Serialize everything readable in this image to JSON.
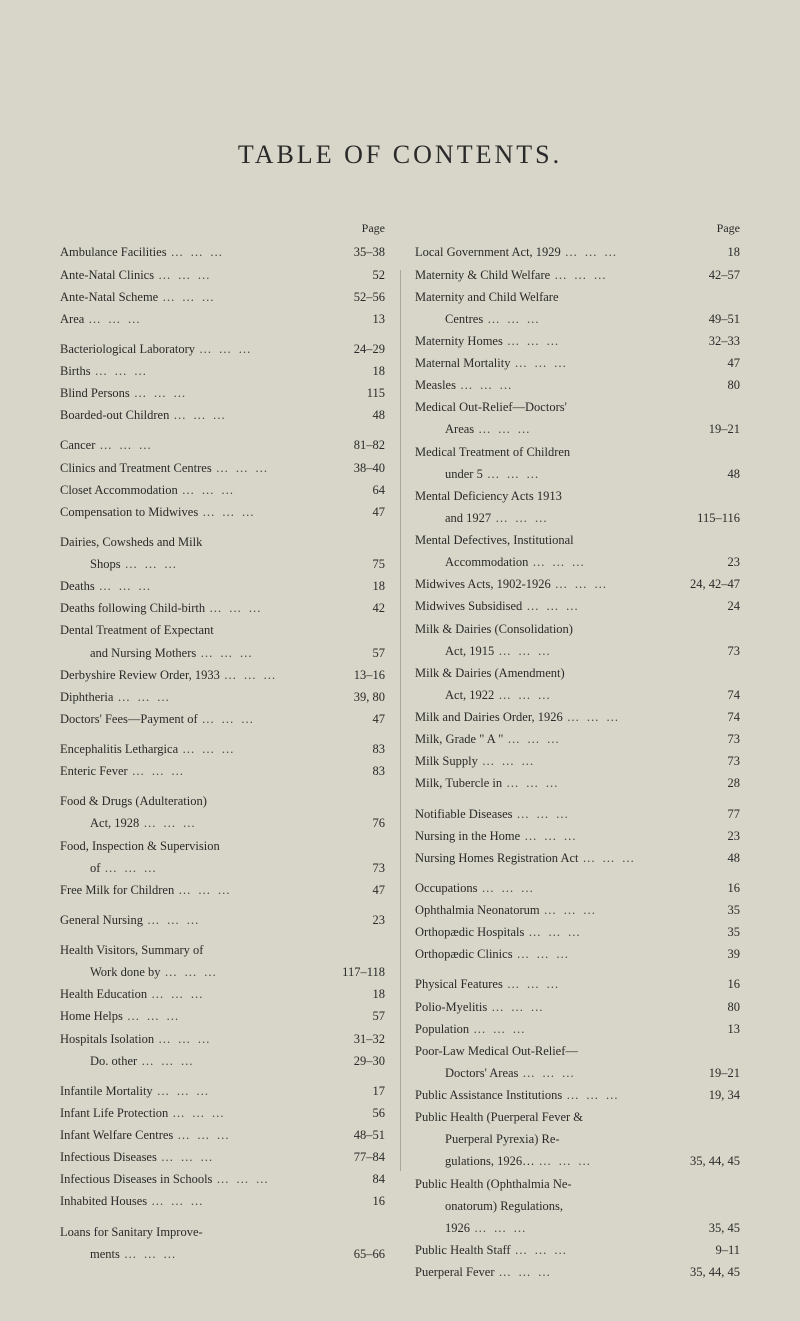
{
  "title": "TABLE OF CONTENTS.",
  "pageHeader": "Page",
  "colors": {
    "background": "#d8d6c8",
    "text": "#2a2a2a",
    "divider": "#3a3a3a"
  },
  "typography": {
    "titleSize": 26,
    "bodySize": 12.5,
    "titleLetterSpacing": 3
  },
  "leftColumn": [
    {
      "label": "Ambulance Facilities",
      "page": "35–38"
    },
    {
      "label": "Ante-Natal Clinics",
      "page": "52"
    },
    {
      "label": "Ante-Natal Scheme",
      "page": "52–56"
    },
    {
      "label": "Area",
      "page": "13"
    },
    {
      "gap": true
    },
    {
      "label": "Bacteriological Laboratory",
      "page": "24–29"
    },
    {
      "label": "Births",
      "page": "18"
    },
    {
      "label": "Blind Persons",
      "page": "115"
    },
    {
      "label": "Boarded-out Children",
      "page": "48"
    },
    {
      "gap": true
    },
    {
      "label": "Cancer",
      "page": "81–82"
    },
    {
      "label": "Clinics and Treatment Centres",
      "page": "38–40"
    },
    {
      "label": "Closet Accommodation",
      "page": "64"
    },
    {
      "label": "Compensation to Midwives",
      "page": "47"
    },
    {
      "gap": true
    },
    {
      "label": "Dairies, Cowsheds and Milk",
      "page": ""
    },
    {
      "label": "Shops",
      "page": "75",
      "sub": true
    },
    {
      "label": "Deaths",
      "page": "18"
    },
    {
      "label": "Deaths following Child-birth",
      "page": "42"
    },
    {
      "label": "Dental Treatment of Expectant",
      "page": ""
    },
    {
      "label": "and Nursing Mothers",
      "page": "57",
      "sub": true
    },
    {
      "label": "Derbyshire Review Order, 1933",
      "page": "13–16"
    },
    {
      "label": "Diphtheria",
      "page": "39, 80"
    },
    {
      "label": "Doctors' Fees—Payment of",
      "page": "47"
    },
    {
      "gap": true
    },
    {
      "label": "Encephalitis Lethargica",
      "page": "83"
    },
    {
      "label": "Enteric Fever",
      "page": "83"
    },
    {
      "gap": true
    },
    {
      "label": "Food & Drugs (Adulteration)",
      "page": ""
    },
    {
      "label": "Act, 1928",
      "page": "76",
      "sub": true
    },
    {
      "label": "Food, Inspection & Supervision",
      "page": ""
    },
    {
      "label": "of",
      "page": "73",
      "sub": true
    },
    {
      "label": "Free Milk for Children",
      "page": "47"
    },
    {
      "gap": true
    },
    {
      "label": "General Nursing",
      "page": "23"
    },
    {
      "gap": true
    },
    {
      "label": "Health Visitors, Summary of",
      "page": ""
    },
    {
      "label": "Work done by",
      "page": "117–118",
      "sub": true
    },
    {
      "label": "Health Education",
      "page": "18"
    },
    {
      "label": "Home Helps",
      "page": "57"
    },
    {
      "label": "Hospitals Isolation",
      "page": "31–32"
    },
    {
      "label": "Do. other",
      "page": "29–30",
      "sub": true
    },
    {
      "gap": true
    },
    {
      "label": "Infantile Mortality",
      "page": "17"
    },
    {
      "label": "Infant Life Protection",
      "page": "56"
    },
    {
      "label": "Infant Welfare Centres",
      "page": "48–51"
    },
    {
      "label": "Infectious Diseases",
      "page": "77–84"
    },
    {
      "label": "Infectious Diseases in Schools",
      "page": "84"
    },
    {
      "label": "Inhabited Houses",
      "page": "16"
    },
    {
      "gap": true
    },
    {
      "label": "Loans for Sanitary Improve-",
      "page": ""
    },
    {
      "label": "ments",
      "page": "65–66",
      "sub": true
    }
  ],
  "rightColumn": [
    {
      "label": "Local Government Act, 1929",
      "page": "18"
    },
    {
      "label": "Maternity & Child Welfare",
      "page": "42–57"
    },
    {
      "label": "Maternity and Child Welfare",
      "page": ""
    },
    {
      "label": "Centres",
      "page": "49–51",
      "sub": true
    },
    {
      "label": "Maternity Homes",
      "page": "32–33"
    },
    {
      "label": "Maternal Mortality",
      "page": "47"
    },
    {
      "label": "Measles",
      "page": "80"
    },
    {
      "label": "Medical Out-Relief—Doctors'",
      "page": ""
    },
    {
      "label": "Areas",
      "page": "19–21",
      "sub": true
    },
    {
      "label": "Medical Treatment of Children",
      "page": ""
    },
    {
      "label": "under 5",
      "page": "48",
      "sub": true
    },
    {
      "label": "Mental Deficiency Acts 1913",
      "page": ""
    },
    {
      "label": "and 1927",
      "page": "115–116",
      "sub": true
    },
    {
      "label": "Mental Defectives, Institutional",
      "page": ""
    },
    {
      "label": "Accommodation",
      "page": "23",
      "sub": true
    },
    {
      "label": "Midwives Acts, 1902-1926",
      "page": "24, 42–47"
    },
    {
      "label": "Midwives Subsidised",
      "page": "24"
    },
    {
      "label": "Milk & Dairies (Consolidation)",
      "page": ""
    },
    {
      "label": "Act, 1915",
      "page": "73",
      "sub": true
    },
    {
      "label": "Milk & Dairies (Amendment)",
      "page": ""
    },
    {
      "label": "Act, 1922",
      "page": "74",
      "sub": true
    },
    {
      "label": "Milk and Dairies Order, 1926",
      "page": "74"
    },
    {
      "label": "Milk, Grade \" A \"",
      "page": "73"
    },
    {
      "label": "Milk Supply",
      "page": "73"
    },
    {
      "label": "Milk, Tubercle in",
      "page": "28"
    },
    {
      "gap": true
    },
    {
      "label": "Notifiable Diseases",
      "page": "77"
    },
    {
      "label": "Nursing in the Home",
      "page": "23"
    },
    {
      "label": "Nursing Homes Registration Act",
      "page": "48"
    },
    {
      "gap": true
    },
    {
      "label": "Occupations",
      "page": "16"
    },
    {
      "label": "Ophthalmia Neonatorum",
      "page": "35"
    },
    {
      "label": "Orthopædic Hospitals",
      "page": "35"
    },
    {
      "label": "Orthopædic Clinics",
      "page": "39"
    },
    {
      "gap": true
    },
    {
      "label": "Physical Features",
      "page": "16"
    },
    {
      "label": "Polio-Myelitis",
      "page": "80"
    },
    {
      "label": "Population",
      "page": "13"
    },
    {
      "label": "Poor-Law Medical Out-Relief—",
      "page": ""
    },
    {
      "label": "Doctors' Areas",
      "page": "19–21",
      "sub": true
    },
    {
      "label": "Public Assistance Institutions",
      "page": "19, 34"
    },
    {
      "label": "Public Health (Puerperal Fever &",
      "page": ""
    },
    {
      "label": "Puerperal Pyrexia) Re-",
      "page": "",
      "sub": true
    },
    {
      "label": "gulations, 1926…",
      "page": "35, 44, 45",
      "sub": true
    },
    {
      "label": "Public Health (Ophthalmia Ne-",
      "page": ""
    },
    {
      "label": "onatorum) Regulations,",
      "page": "",
      "sub": true
    },
    {
      "label": "1926",
      "page": "35, 45",
      "sub": true
    },
    {
      "label": "Public Health Staff",
      "page": "9–11"
    },
    {
      "label": "Puerperal Fever",
      "page": "35, 44, 45"
    }
  ]
}
